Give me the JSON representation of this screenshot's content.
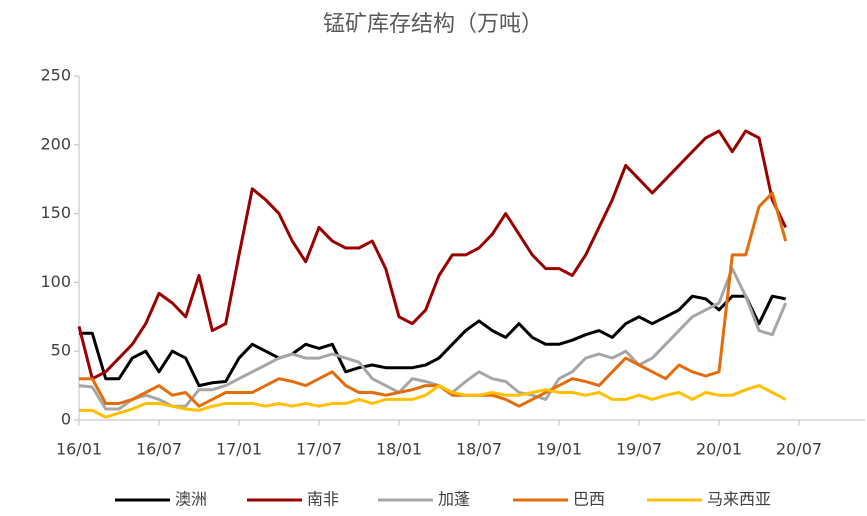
{
  "chart_data": {
    "type": "line",
    "title": "锰矿库存结构（万吨）",
    "x": [
      "16/01",
      "16/02",
      "16/03",
      "16/04",
      "16/05",
      "16/06",
      "16/07",
      "16/08",
      "16/09",
      "16/10",
      "16/11",
      "16/12",
      "17/01",
      "17/02",
      "17/03",
      "17/04",
      "17/05",
      "17/06",
      "17/07",
      "17/08",
      "17/09",
      "17/10",
      "17/11",
      "17/12",
      "18/01",
      "18/02",
      "18/03",
      "18/04",
      "18/05",
      "18/06",
      "18/07",
      "18/08",
      "18/09",
      "18/10",
      "18/11",
      "18/12",
      "19/01",
      "19/02",
      "19/03",
      "19/04",
      "19/05",
      "19/06",
      "19/07",
      "19/08",
      "19/09",
      "19/10",
      "19/11",
      "19/12",
      "20/01",
      "20/02",
      "20/03",
      "20/04",
      "20/05",
      "20/06"
    ],
    "xticks": [
      "16/01",
      "16/07",
      "17/01",
      "17/07",
      "18/01",
      "18/07",
      "19/01",
      "19/07",
      "20/01",
      "20/07"
    ],
    "ylim": [
      0,
      250
    ],
    "yticks": [
      0,
      50,
      100,
      150,
      200,
      250
    ],
    "grid": false,
    "legend": "bottom",
    "series": [
      {
        "name": "澳洲",
        "color": "#000000",
        "values": [
          63,
          63,
          30,
          30,
          45,
          50,
          35,
          50,
          45,
          25,
          27,
          28,
          45,
          55,
          50,
          45,
          48,
          55,
          52,
          55,
          35,
          38,
          40,
          38,
          38,
          38,
          40,
          45,
          55,
          65,
          72,
          65,
          60,
          70,
          60,
          55,
          55,
          58,
          62,
          65,
          60,
          70,
          75,
          70,
          75,
          80,
          90,
          88,
          80,
          90,
          90,
          70,
          90,
          88
        ]
      },
      {
        "name": "南非",
        "color": "#990000",
        "values": [
          68,
          30,
          35,
          45,
          55,
          70,
          92,
          85,
          75,
          105,
          65,
          70,
          120,
          168,
          160,
          150,
          130,
          115,
          140,
          130,
          125,
          125,
          130,
          110,
          75,
          70,
          80,
          105,
          120,
          120,
          125,
          135,
          150,
          135,
          120,
          110,
          110,
          105,
          120,
          140,
          160,
          185,
          175,
          165,
          175,
          185,
          195,
          205,
          210,
          195,
          210,
          205,
          160,
          140
        ]
      },
      {
        "name": "加蓬",
        "color": "#a6a6a6",
        "values": [
          25,
          24,
          8,
          8,
          15,
          18,
          15,
          10,
          10,
          22,
          22,
          25,
          30,
          35,
          40,
          45,
          48,
          45,
          45,
          48,
          45,
          42,
          30,
          25,
          20,
          30,
          28,
          25,
          20,
          28,
          35,
          30,
          28,
          20,
          18,
          15,
          30,
          35,
          45,
          48,
          45,
          50,
          40,
          45,
          55,
          65,
          75,
          80,
          85,
          110,
          90,
          65,
          62,
          85
        ]
      },
      {
        "name": "巴西",
        "color": "#e46c0a",
        "values": [
          30,
          30,
          12,
          12,
          15,
          20,
          25,
          18,
          20,
          10,
          15,
          20,
          20,
          20,
          25,
          30,
          28,
          25,
          30,
          35,
          25,
          20,
          20,
          18,
          20,
          22,
          25,
          25,
          18,
          18,
          18,
          18,
          15,
          10,
          15,
          20,
          25,
          30,
          28,
          25,
          35,
          45,
          40,
          35,
          30,
          40,
          35,
          32,
          35,
          120,
          120,
          155,
          165,
          130
        ]
      },
      {
        "name": "马来西亚",
        "color": "#ffc000",
        "values": [
          7,
          7,
          2,
          5,
          8,
          12,
          12,
          10,
          8,
          7,
          10,
          12,
          12,
          12,
          10,
          12,
          10,
          12,
          10,
          12,
          12,
          15,
          12,
          15,
          15,
          15,
          18,
          25,
          20,
          18,
          18,
          20,
          18,
          18,
          20,
          22,
          20,
          20,
          18,
          20,
          15,
          15,
          18,
          15,
          18,
          20,
          15,
          20,
          18,
          18,
          22,
          25,
          20,
          15
        ]
      }
    ]
  }
}
